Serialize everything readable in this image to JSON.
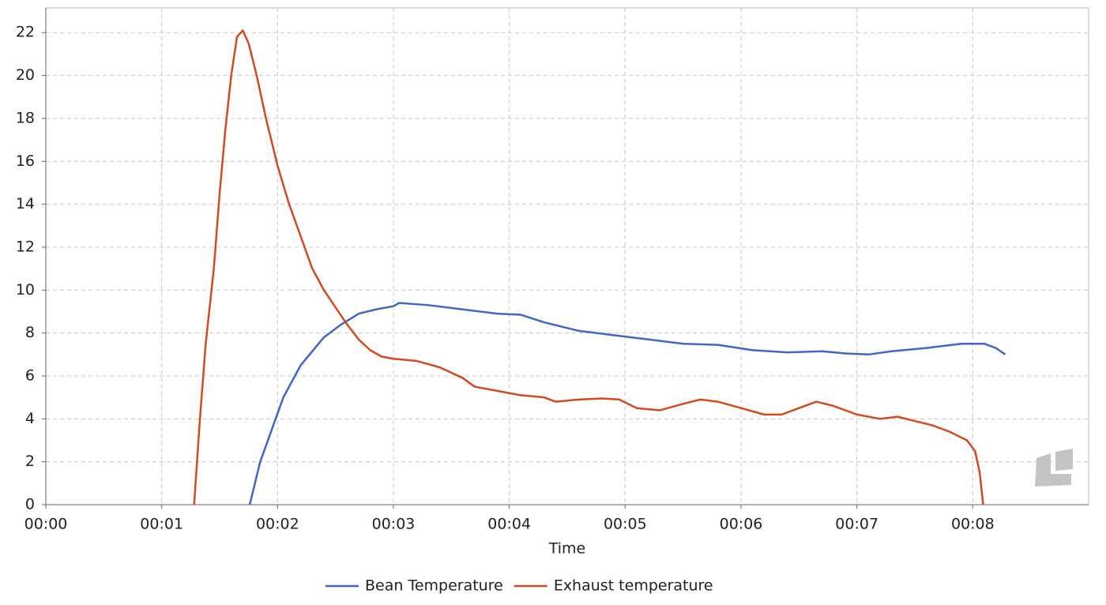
{
  "chart_data": {
    "type": "line",
    "x_label": "Time",
    "xlim": [
      0,
      9
    ],
    "ylim": [
      0,
      23.15
    ],
    "grid": true,
    "legend": "bottom",
    "xticks": [
      {
        "value": 0,
        "label": "00:00"
      },
      {
        "value": 1,
        "label": "00:01"
      },
      {
        "value": 2,
        "label": "00:02"
      },
      {
        "value": 3,
        "label": "00:03"
      },
      {
        "value": 4,
        "label": "00:04"
      },
      {
        "value": 5,
        "label": "00:05"
      },
      {
        "value": 6,
        "label": "00:06"
      },
      {
        "value": 7,
        "label": "00:07"
      },
      {
        "value": 8,
        "label": "00:08"
      }
    ],
    "yticks": [
      0,
      2,
      4,
      6,
      8,
      10,
      12,
      14,
      16,
      18,
      20,
      22
    ],
    "series": [
      {
        "name": "Bean Temperature",
        "color": "#4166c4",
        "x": [
          1.76,
          1.85,
          1.95,
          2.05,
          2.2,
          2.4,
          2.55,
          2.7,
          2.85,
          3.0,
          3.05,
          3.3,
          3.6,
          3.9,
          4.1,
          4.3,
          4.6,
          4.9,
          5.2,
          5.5,
          5.8,
          6.1,
          6.4,
          6.7,
          6.9,
          7.1,
          7.3,
          7.6,
          7.9,
          8.1,
          8.2,
          8.28
        ],
        "values": [
          0,
          2,
          3.5,
          5,
          6.5,
          7.8,
          8.4,
          8.9,
          9.1,
          9.25,
          9.4,
          9.3,
          9.1,
          8.9,
          8.85,
          8.5,
          8.1,
          7.9,
          7.7,
          7.5,
          7.45,
          7.2,
          7.1,
          7.15,
          7.05,
          7.0,
          7.15,
          7.3,
          7.5,
          7.5,
          7.3,
          7.0
        ]
      },
      {
        "name": "Exhaust temperature",
        "color": "#d04a24",
        "x": [
          1.28,
          1.33,
          1.38,
          1.45,
          1.5,
          1.55,
          1.6,
          1.65,
          1.7,
          1.75,
          1.82,
          1.9,
          2.0,
          2.1,
          2.2,
          2.3,
          2.4,
          2.5,
          2.6,
          2.7,
          2.8,
          2.9,
          3.0,
          3.2,
          3.4,
          3.6,
          3.7,
          3.9,
          4.1,
          4.3,
          4.4,
          4.6,
          4.8,
          4.95,
          5.1,
          5.3,
          5.5,
          5.65,
          5.8,
          6.0,
          6.2,
          6.35,
          6.5,
          6.65,
          6.8,
          7.0,
          7.2,
          7.35,
          7.5,
          7.65,
          7.8,
          7.95,
          8.02,
          8.06,
          8.09
        ],
        "values": [
          0,
          4,
          7.5,
          11,
          14.5,
          17.5,
          20,
          21.8,
          22.1,
          21.5,
          20,
          18,
          15.8,
          14,
          12.5,
          11,
          10,
          9.2,
          8.4,
          7.7,
          7.2,
          6.9,
          6.8,
          6.7,
          6.4,
          5.9,
          5.5,
          5.3,
          5.1,
          5.0,
          4.8,
          4.9,
          4.95,
          4.9,
          4.5,
          4.4,
          4.7,
          4.9,
          4.8,
          4.5,
          4.2,
          4.2,
          4.5,
          4.8,
          4.6,
          4.2,
          4.0,
          4.1,
          3.9,
          3.7,
          3.4,
          3.0,
          2.5,
          1.5,
          0
        ]
      }
    ]
  }
}
